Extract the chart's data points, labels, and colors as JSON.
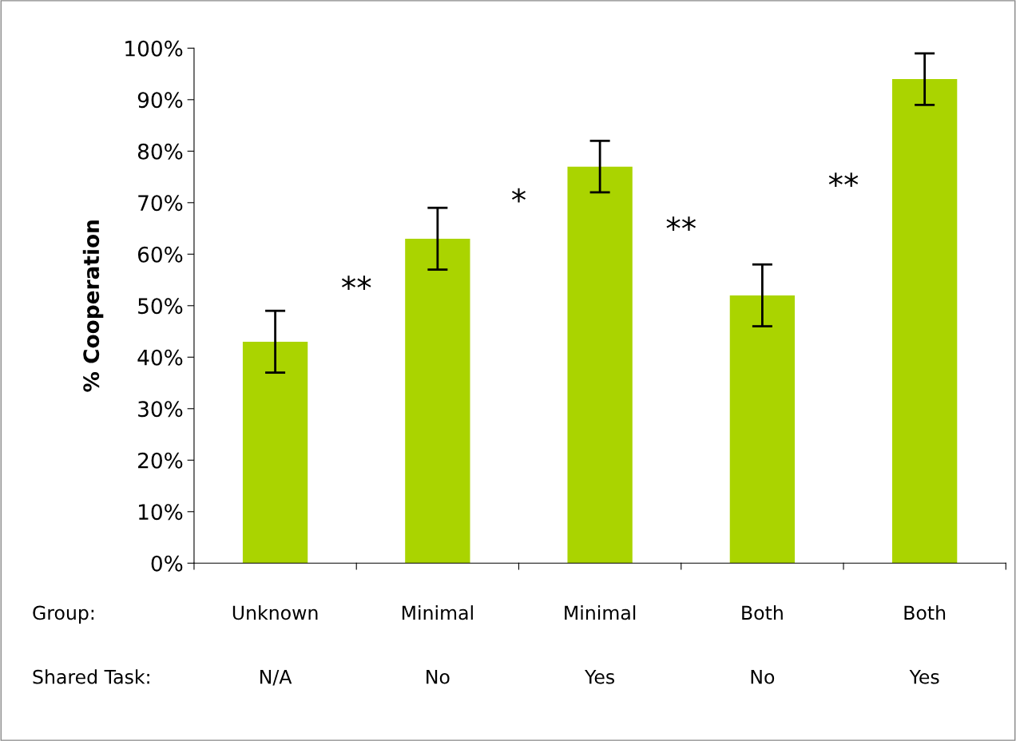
{
  "chart_data": {
    "type": "bar",
    "ylabel": "% Cooperation",
    "categories": [
      "Unknown\nN/A",
      "Minimal\nNo",
      "Minimal\nYes",
      "Both\nNo",
      "Both\nYes"
    ],
    "values": [
      43,
      63,
      77,
      52,
      94
    ],
    "errors": [
      6,
      6,
      5,
      6,
      5
    ],
    "color": "#aad400",
    "ylim": [
      0,
      100
    ],
    "yticks": [
      {
        "value": 0,
        "label": "0%"
      },
      {
        "value": 10,
        "label": "10%"
      },
      {
        "value": 20,
        "label": "20%"
      },
      {
        "value": 30,
        "label": "30%"
      },
      {
        "value": 40,
        "label": "40%"
      },
      {
        "value": 50,
        "label": "50%"
      },
      {
        "value": 60,
        "label": "60%"
      },
      {
        "value": 70,
        "label": "70%"
      },
      {
        "value": 80,
        "label": "80%"
      },
      {
        "value": 90,
        "label": "90%"
      },
      {
        "value": 100,
        "label": "100%"
      }
    ],
    "grid": false,
    "annotations": [
      "Group:\nShared Task:",
      "**",
      "*",
      "**",
      "**"
    ]
  }
}
